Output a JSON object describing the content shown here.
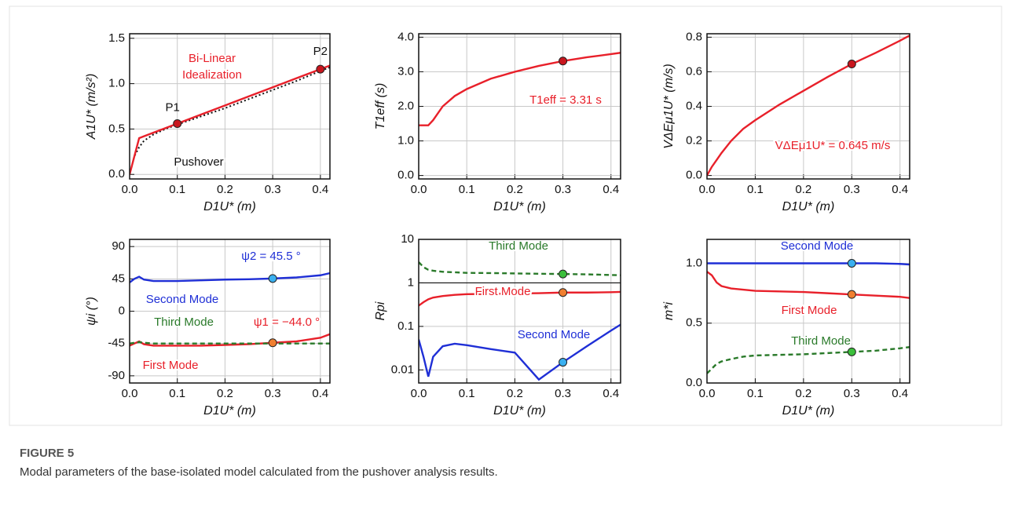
{
  "figure": {
    "label": "FIGURE 5",
    "caption": "Modal parameters of the base-isolated model calculated from the pushover analysis results."
  },
  "chart_data": [
    {
      "type": "line",
      "xlabel": "D1U* (m)",
      "ylabel": "A1U* (m/s²)",
      "x": [
        0,
        0.01,
        0.02,
        0.03,
        0.05,
        0.075,
        0.1,
        0.15,
        0.2,
        0.25,
        0.3,
        0.35,
        0.4,
        0.42
      ],
      "series": [
        {
          "color": "#111111",
          "line_style": "dotted",
          "values": [
            0,
            0.2,
            0.3,
            0.37,
            0.44,
            0.5,
            0.55,
            0.64,
            0.73,
            0.83,
            0.93,
            1.03,
            1.14,
            1.18
          ]
        },
        {
          "color": "#e8202a",
          "line_style": "solid",
          "values": [
            0,
            0.2,
            0.4,
            0.42,
            0.46,
            0.51,
            0.56,
            0.66,
            0.76,
            0.86,
            0.96,
            1.06,
            1.16,
            1.2
          ]
        }
      ],
      "points": [
        {
          "label": "P1",
          "x": 0.1,
          "y": 0.56,
          "color": "#c8161e"
        },
        {
          "label": "P2",
          "x": 0.4,
          "y": 1.16,
          "color": "#c8161e"
        }
      ],
      "annotations": [
        {
          "text": "Bi-Linear",
          "color": "#e8202a"
        },
        {
          "text": "Idealization",
          "color": "#e8202a"
        },
        {
          "text": "Pushover",
          "color": "#111111"
        }
      ],
      "xlim": [
        0,
        0.42
      ],
      "xticks": [
        {
          "value": 0,
          "label": "0.0"
        },
        0.1,
        0.2,
        0.3,
        0.4
      ],
      "ylim": [
        -0.05,
        1.55
      ],
      "yticks": [
        {
          "value": 0,
          "label": "0.0"
        },
        0.5,
        {
          "value": 1,
          "label": "1.0"
        },
        1.5
      ],
      "grid": true
    },
    {
      "type": "line",
      "xlabel": "D1U* (m)",
      "ylabel": "T1eff (s)",
      "x": [
        0,
        0.01,
        0.02,
        0.03,
        0.05,
        0.075,
        0.1,
        0.15,
        0.2,
        0.25,
        0.3,
        0.35,
        0.4,
        0.42
      ],
      "series": [
        {
          "color": "#e8202a",
          "line_style": "solid",
          "values": [
            1.45,
            1.45,
            1.45,
            1.6,
            2.0,
            2.3,
            2.5,
            2.8,
            3.0,
            3.17,
            3.31,
            3.42,
            3.51,
            3.55
          ]
        }
      ],
      "points": [
        {
          "x": 0.3,
          "y": 3.31,
          "color": "#c8161e"
        }
      ],
      "annotations": [
        {
          "text": "T1eff = 3.31 s",
          "color": "#e8202a"
        }
      ],
      "xlim": [
        0,
        0.42
      ],
      "xticks": [
        {
          "value": 0,
          "label": "0.0"
        },
        0.1,
        0.2,
        0.3,
        0.4
      ],
      "ylim": [
        -0.1,
        4.1
      ],
      "yticks": [
        {
          "value": 0,
          "label": "0.0"
        },
        {
          "value": 1,
          "label": "1.0"
        },
        {
          "value": 2,
          "label": "2.0"
        },
        {
          "value": 3,
          "label": "3.0"
        },
        {
          "value": 4,
          "label": "4.0"
        }
      ],
      "grid": true
    },
    {
      "type": "line",
      "xlabel": "D1U* (m)",
      "ylabel": "VΔEμ1U* (m/s)",
      "x": [
        0,
        0.01,
        0.02,
        0.03,
        0.05,
        0.075,
        0.1,
        0.15,
        0.2,
        0.25,
        0.3,
        0.35,
        0.4,
        0.42
      ],
      "series": [
        {
          "color": "#e8202a",
          "line_style": "solid",
          "values": [
            0,
            0.05,
            0.09,
            0.13,
            0.2,
            0.27,
            0.32,
            0.41,
            0.49,
            0.57,
            0.645,
            0.71,
            0.78,
            0.81
          ]
        }
      ],
      "points": [
        {
          "x": 0.3,
          "y": 0.645,
          "color": "#c8161e"
        }
      ],
      "annotations": [
        {
          "text": "VΔEμ1U* = 0.645 m/s",
          "color": "#e8202a"
        }
      ],
      "xlim": [
        0,
        0.42
      ],
      "xticks": [
        {
          "value": 0,
          "label": "0.0"
        },
        0.1,
        0.2,
        0.3,
        0.4
      ],
      "ylim": [
        -0.02,
        0.82
      ],
      "yticks": [
        {
          "value": 0,
          "label": "0.0"
        },
        0.2,
        0.4,
        0.6,
        0.8
      ],
      "grid": true
    },
    {
      "type": "line",
      "xlabel": "D1U* (m)",
      "ylabel": "ψi (°)",
      "x": [
        0,
        0.01,
        0.02,
        0.03,
        0.05,
        0.075,
        0.1,
        0.15,
        0.2,
        0.25,
        0.3,
        0.35,
        0.4,
        0.42
      ],
      "series": [
        {
          "color": "#1f2fd6",
          "line_style": "solid",
          "values": [
            40,
            45,
            48,
            44,
            42,
            42,
            42,
            43,
            44,
            44.5,
            45.5,
            47,
            50,
            53
          ]
        },
        {
          "color": "#e8202a",
          "line_style": "solid",
          "values": [
            -48,
            -45,
            -42,
            -46,
            -48,
            -48,
            -48,
            -48,
            -47,
            -46,
            -44,
            -42,
            -37,
            -32
          ]
        },
        {
          "color": "#2a7a2a",
          "line_style": "dashed",
          "values": [
            -45,
            -44,
            -43,
            -44,
            -45,
            -45,
            -45,
            -45,
            -45,
            -45,
            -45,
            -45,
            -45,
            -45
          ]
        }
      ],
      "points": [
        {
          "x": 0.3,
          "y": 45.5,
          "color": "#3ab0f0"
        },
        {
          "x": 0.3,
          "y": -44,
          "color": "#f07f30"
        }
      ],
      "annotations": [
        {
          "text": "ψ2 = 45.5 °",
          "color": "#1f2fd6"
        },
        {
          "text": "Second Mode",
          "color": "#1f2fd6"
        },
        {
          "text": "Third Mode",
          "color": "#2a7a2a"
        },
        {
          "text": "ψ1 = −44.0 °",
          "color": "#e8202a"
        },
        {
          "text": "First Mode",
          "color": "#e8202a"
        }
      ],
      "xlim": [
        0,
        0.42
      ],
      "xticks": [
        {
          "value": 0,
          "label": "0.0"
        },
        0.1,
        0.2,
        0.3,
        0.4
      ],
      "ylim": [
        -100,
        100
      ],
      "yticks": [
        -90,
        -45,
        0,
        45,
        90
      ],
      "grid": true
    },
    {
      "type": "line",
      "xlabel": "D1U* (m)",
      "ylabel": "Rpi",
      "log_y": true,
      "reference_line": 1,
      "x": [
        0,
        0.01,
        0.02,
        0.03,
        0.05,
        0.075,
        0.1,
        0.15,
        0.2,
        0.25,
        0.3,
        0.35,
        0.4,
        0.42
      ],
      "series": [
        {
          "color": "#2a7a2a",
          "line_style": "dashed",
          "values": [
            3,
            2.3,
            2,
            1.9,
            1.8,
            1.75,
            1.7,
            1.68,
            1.65,
            1.62,
            1.6,
            1.57,
            1.52,
            1.5
          ]
        },
        {
          "color": "#e8202a",
          "line_style": "solid",
          "values": [
            0.3,
            0.36,
            0.42,
            0.46,
            0.5,
            0.53,
            0.55,
            0.56,
            0.57,
            0.58,
            0.6,
            0.6,
            0.61,
            0.62
          ]
        },
        {
          "color": "#1f2fd6",
          "line_style": "solid",
          "values": [
            0.05,
            0.02,
            0.007,
            0.02,
            0.035,
            0.04,
            0.037,
            0.03,
            0.025,
            0.006,
            0.015,
            0.035,
            0.08,
            0.11
          ]
        }
      ],
      "points": [
        {
          "x": 0.3,
          "y": 1.6,
          "color": "#3bbf3b"
        },
        {
          "x": 0.3,
          "y": 0.6,
          "color": "#f07f30"
        },
        {
          "x": 0.3,
          "y": 0.015,
          "color": "#3ab0f0"
        }
      ],
      "annotations": [
        {
          "text": "Third Mode",
          "color": "#2a7a2a"
        },
        {
          "text": "First Mode",
          "color": "#e8202a"
        },
        {
          "text": "Second Mode",
          "color": "#1f2fd6"
        }
      ],
      "xlim": [
        0,
        0.42
      ],
      "xticks": [
        {
          "value": 0,
          "label": "0.0"
        },
        0.1,
        0.2,
        0.3,
        0.4
      ],
      "ylim": [
        0.005,
        10
      ],
      "yticks": [
        0.01,
        0.1,
        1,
        10
      ],
      "grid": true
    },
    {
      "type": "line",
      "xlabel": "D1U* (m)",
      "ylabel": "m*i",
      "x": [
        0,
        0.01,
        0.02,
        0.03,
        0.05,
        0.075,
        0.1,
        0.15,
        0.2,
        0.25,
        0.3,
        0.35,
        0.4,
        0.42
      ],
      "series": [
        {
          "color": "#1f2fd6",
          "line_style": "solid",
          "values": [
            1,
            1,
            1,
            1,
            1,
            1,
            1,
            1,
            1,
            1,
            1,
            1,
            0.995,
            0.99
          ]
        },
        {
          "color": "#e8202a",
          "line_style": "solid",
          "values": [
            0.93,
            0.9,
            0.84,
            0.81,
            0.79,
            0.78,
            0.77,
            0.765,
            0.76,
            0.75,
            0.74,
            0.73,
            0.72,
            0.71
          ]
        },
        {
          "color": "#2a7a2a",
          "line_style": "dashed",
          "values": [
            0.08,
            0.12,
            0.16,
            0.18,
            0.2,
            0.22,
            0.23,
            0.235,
            0.24,
            0.25,
            0.26,
            0.27,
            0.29,
            0.3
          ]
        }
      ],
      "points": [
        {
          "x": 0.3,
          "y": 1,
          "color": "#3ab0f0"
        },
        {
          "x": 0.3,
          "y": 0.74,
          "color": "#f07f30"
        },
        {
          "x": 0.3,
          "y": 0.26,
          "color": "#3bbf3b"
        }
      ],
      "annotations": [
        {
          "text": "Second Mode",
          "color": "#1f2fd6"
        },
        {
          "text": "First Mode",
          "color": "#e8202a"
        },
        {
          "text": "Third Mode",
          "color": "#2a7a2a"
        }
      ],
      "xlim": [
        0,
        0.42
      ],
      "xticks": [
        {
          "value": 0,
          "label": "0.0"
        },
        0.1,
        0.2,
        0.3,
        0.4
      ],
      "ylim": [
        0,
        1.2
      ],
      "yticks": [
        {
          "value": 0,
          "label": "0.0"
        },
        0.5,
        {
          "value": 1,
          "label": "1.0"
        }
      ],
      "grid": true
    }
  ]
}
